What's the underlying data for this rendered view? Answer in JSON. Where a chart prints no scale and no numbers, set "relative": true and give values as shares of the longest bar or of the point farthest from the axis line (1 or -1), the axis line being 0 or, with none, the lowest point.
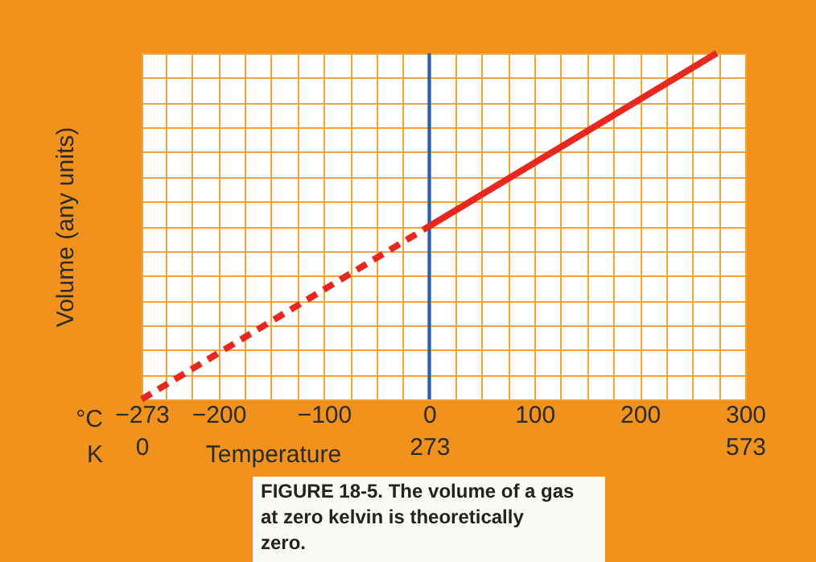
{
  "chart_data": {
    "type": "line",
    "relative": true,
    "xlabel": "Temperature",
    "ylabel": "Volume (any units)",
    "xlim": [
      -273,
      300
    ],
    "xticks": [
      -273,
      {
        "value": -250,
        "label": null
      },
      {
        "value": -225,
        "label": null
      },
      -200,
      {
        "value": -175,
        "label": null
      },
      {
        "value": -150,
        "label": null
      },
      {
        "value": -125,
        "label": null
      },
      -100,
      {
        "value": -75,
        "label": null
      },
      {
        "value": -50,
        "label": null
      },
      {
        "value": -25,
        "label": null
      },
      0,
      {
        "value": 25,
        "label": null
      },
      {
        "value": 50,
        "label": null
      },
      {
        "value": 75,
        "label": null
      },
      100,
      {
        "value": 125,
        "label": null
      },
      {
        "value": 150,
        "label": null
      },
      {
        "value": 175,
        "label": null
      },
      200,
      {
        "value": 225,
        "label": null
      },
      {
        "value": 250,
        "label": null
      },
      {
        "value": 275,
        "label": null
      },
      300
    ],
    "x2lim": [
      0,
      573
    ],
    "x2ticks": [
      0,
      273,
      573
    ],
    "grid": true,
    "series": [
      {
        "color": "#e8281e",
        "x": [
          -273,
          0
        ],
        "values": [
          0,
          0.5
        ],
        "line_style": "dashed"
      },
      {
        "color": "#e8281e",
        "x": [
          0,
          273
        ],
        "values": [
          0.5,
          1
        ],
        "line_style": "solid"
      }
    ],
    "ref_lines": [
      {
        "axis": "x",
        "value": 0,
        "color": "#2a62a8"
      }
    ],
    "annotations": [
      "°C",
      "K",
      "FIGURE 18-5. The volume of a gas at zero kelvin is theoretically zero."
    ]
  }
}
